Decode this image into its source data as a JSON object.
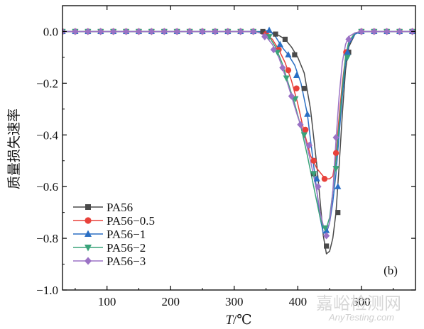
{
  "chart_data": {
    "type": "line",
    "panel_label": "(b)",
    "xlabel": "T/℃",
    "ylabel": "质量损失速率",
    "xlim": [
      30,
      585
    ],
    "ylim": [
      -1.0,
      0.1
    ],
    "xticks": [
      100,
      200,
      300,
      400,
      500
    ],
    "yticks": [
      0.0,
      -0.2,
      -0.4,
      -0.6,
      -0.8,
      -1.0
    ],
    "ytick_labels": [
      "0.0",
      "-0.2",
      "-0.4",
      "-0.6",
      "-0.8",
      "-1.0"
    ],
    "legend_position": "bottom-left",
    "grid": false,
    "series": [
      {
        "name": "PA56",
        "color": "#4a4a4a",
        "marker": "square",
        "x": [
          30,
          50,
          70,
          90,
          110,
          130,
          150,
          170,
          190,
          210,
          230,
          250,
          270,
          290,
          310,
          330,
          350,
          360,
          370,
          380,
          390,
          400,
          410,
          420,
          430,
          440,
          445,
          450,
          455,
          460,
          465,
          470,
          475,
          480,
          490,
          500,
          510,
          530,
          550,
          570,
          585
        ],
        "y": [
          0,
          0,
          0,
          0,
          0,
          0,
          0,
          0,
          0,
          0,
          0,
          0,
          0,
          0,
          0,
          0,
          -0.002,
          -0.005,
          -0.015,
          -0.03,
          -0.06,
          -0.1,
          -0.16,
          -0.3,
          -0.52,
          -0.79,
          -0.86,
          -0.85,
          -0.8,
          -0.7,
          -0.52,
          -0.32,
          -0.15,
          -0.06,
          -0.01,
          0,
          0,
          0,
          0,
          0,
          0
        ],
        "marker_x": [
          30,
          50,
          70,
          90,
          110,
          130,
          150,
          170,
          190,
          210,
          230,
          250,
          270,
          290,
          310,
          330,
          345,
          365,
          380,
          395,
          410,
          425,
          445,
          463,
          480,
          500,
          520,
          540,
          560,
          580
        ],
        "marker_y": [
          0,
          0,
          0,
          0,
          0,
          0,
          0,
          0,
          0,
          0,
          0,
          0,
          0,
          0,
          0,
          0,
          0,
          -0.01,
          -0.03,
          -0.09,
          -0.22,
          -0.55,
          -0.83,
          -0.7,
          -0.08,
          0,
          0,
          0,
          0,
          0
        ]
      },
      {
        "name": "PA56−0.5",
        "color": "#e8413a",
        "marker": "circle",
        "x": [
          30,
          50,
          70,
          90,
          110,
          130,
          150,
          170,
          190,
          210,
          230,
          250,
          270,
          290,
          310,
          330,
          345,
          360,
          370,
          380,
          390,
          400,
          410,
          420,
          430,
          440,
          445,
          450,
          455,
          460,
          465,
          470,
          475,
          480,
          490,
          500,
          510,
          530,
          550,
          570,
          585
        ],
        "y": [
          0,
          0,
          0,
          0,
          0,
          0,
          0,
          0,
          0,
          0,
          0,
          0,
          0,
          0,
          0,
          0,
          -0.005,
          -0.03,
          -0.07,
          -0.12,
          -0.19,
          -0.28,
          -0.39,
          -0.48,
          -0.53,
          -0.56,
          -0.57,
          -0.57,
          -0.56,
          -0.48,
          -0.33,
          -0.2,
          -0.1,
          -0.04,
          -0.005,
          0,
          0,
          0,
          0,
          0,
          0
        ],
        "marker_x": [
          30,
          50,
          70,
          90,
          110,
          130,
          150,
          170,
          190,
          210,
          230,
          250,
          270,
          290,
          310,
          330,
          350,
          370,
          385,
          398,
          412,
          425,
          442,
          460,
          476,
          500,
          520,
          540,
          560,
          580
        ],
        "marker_y": [
          0,
          0,
          0,
          0,
          0,
          0,
          0,
          0,
          0,
          0,
          0,
          0,
          0,
          0,
          0,
          0,
          -0.01,
          -0.07,
          -0.15,
          -0.22,
          -0.38,
          -0.5,
          -0.57,
          -0.47,
          -0.08,
          0,
          0,
          0,
          0,
          0
        ]
      },
      {
        "name": "PA56−1",
        "color": "#2a6fc4",
        "marker": "triangle-up",
        "x": [
          30,
          50,
          70,
          90,
          110,
          130,
          150,
          170,
          190,
          210,
          230,
          250,
          270,
          290,
          310,
          330,
          345,
          355,
          365,
          375,
          385,
          395,
          405,
          415,
          425,
          435,
          440,
          445,
          450,
          455,
          460,
          465,
          470,
          475,
          480,
          490,
          500,
          530,
          550,
          570,
          585
        ],
        "y": [
          0,
          0,
          0,
          0,
          0,
          0,
          0,
          0,
          0,
          0,
          0,
          0,
          0,
          0,
          0,
          0,
          0,
          0.005,
          -0.02,
          -0.06,
          -0.09,
          -0.13,
          -0.2,
          -0.32,
          -0.52,
          -0.72,
          -0.78,
          -0.78,
          -0.74,
          -0.66,
          -0.55,
          -0.4,
          -0.25,
          -0.12,
          -0.05,
          -0.01,
          0,
          0,
          0,
          0,
          0
        ],
        "marker_x": [
          30,
          50,
          70,
          90,
          110,
          130,
          150,
          170,
          190,
          210,
          230,
          250,
          270,
          290,
          310,
          330,
          355,
          372,
          385,
          398,
          415,
          430,
          445,
          463,
          478,
          500,
          520,
          540,
          560,
          580
        ],
        "marker_y": [
          0,
          0,
          0,
          0,
          0,
          0,
          0,
          0,
          0,
          0,
          0,
          0,
          0,
          0,
          0,
          0,
          0.005,
          -0.05,
          -0.09,
          -0.17,
          -0.32,
          -0.57,
          -0.77,
          -0.6,
          -0.08,
          0,
          0,
          0,
          0,
          0
        ]
      },
      {
        "name": "PA56−2",
        "color": "#3aa37a",
        "marker": "triangle-down",
        "x": [
          30,
          50,
          70,
          90,
          110,
          130,
          150,
          170,
          190,
          210,
          230,
          250,
          270,
          290,
          310,
          330,
          345,
          355,
          365,
          375,
          385,
          395,
          405,
          415,
          425,
          435,
          440,
          445,
          450,
          455,
          460,
          465,
          470,
          475,
          480,
          490,
          500,
          530,
          550,
          570,
          585
        ],
        "y": [
          0,
          0,
          0,
          0,
          0,
          0,
          0,
          0,
          0,
          0,
          0,
          0,
          0,
          0,
          0,
          0,
          -0.005,
          -0.02,
          -0.06,
          -0.12,
          -0.2,
          -0.28,
          -0.37,
          -0.48,
          -0.6,
          -0.72,
          -0.76,
          -0.76,
          -0.72,
          -0.62,
          -0.5,
          -0.36,
          -0.22,
          -0.1,
          -0.04,
          -0.005,
          0,
          0,
          0,
          0,
          0
        ],
        "marker_x": [
          30,
          50,
          70,
          90,
          110,
          130,
          150,
          170,
          190,
          210,
          230,
          250,
          270,
          290,
          310,
          330,
          355,
          368,
          382,
          396,
          410,
          425,
          443,
          460,
          478,
          500,
          520,
          540,
          560,
          580
        ],
        "marker_y": [
          0,
          0,
          0,
          0,
          0,
          0,
          0,
          0,
          0,
          0,
          0,
          0,
          0,
          0,
          0,
          0,
          -0.02,
          -0.08,
          -0.18,
          -0.26,
          -0.4,
          -0.55,
          -0.76,
          -0.53,
          -0.1,
          0,
          0,
          0,
          0,
          0
        ]
      },
      {
        "name": "PA56−3",
        "color": "#9b72c5",
        "marker": "diamond",
        "x": [
          30,
          50,
          70,
          90,
          110,
          130,
          150,
          170,
          190,
          210,
          230,
          250,
          270,
          290,
          310,
          330,
          340,
          350,
          360,
          370,
          380,
          390,
          400,
          410,
          420,
          430,
          435,
          440,
          445,
          450,
          455,
          460,
          465,
          470,
          475,
          480,
          490,
          500,
          530,
          560,
          585
        ],
        "y": [
          0,
          0,
          0,
          0,
          0,
          0,
          0,
          0,
          0,
          0,
          0,
          0,
          0,
          0,
          0,
          0,
          -0.005,
          -0.02,
          -0.05,
          -0.1,
          -0.17,
          -0.25,
          -0.33,
          -0.4,
          -0.5,
          -0.62,
          -0.7,
          -0.75,
          -0.77,
          -0.74,
          -0.62,
          -0.42,
          -0.25,
          -0.12,
          -0.05,
          -0.02,
          -0.005,
          0,
          0,
          0,
          0
        ],
        "marker_x": [
          30,
          50,
          70,
          90,
          110,
          130,
          150,
          170,
          190,
          210,
          230,
          250,
          270,
          290,
          310,
          330,
          348,
          362,
          376,
          390,
          404,
          418,
          432,
          445,
          460,
          480,
          500,
          520,
          540,
          560,
          580
        ],
        "marker_y": [
          0,
          0,
          0,
          0,
          0,
          0,
          0,
          0,
          0,
          0,
          0,
          0,
          0,
          0,
          0,
          0,
          -0.02,
          -0.07,
          -0.14,
          -0.25,
          -0.36,
          -0.44,
          -0.6,
          -0.79,
          -0.41,
          -0.03,
          0,
          0,
          0,
          0,
          0
        ]
      }
    ]
  },
  "watermark": {
    "text_cn": "嘉峪检测网",
    "text_en": "AnyTesting.com"
  }
}
